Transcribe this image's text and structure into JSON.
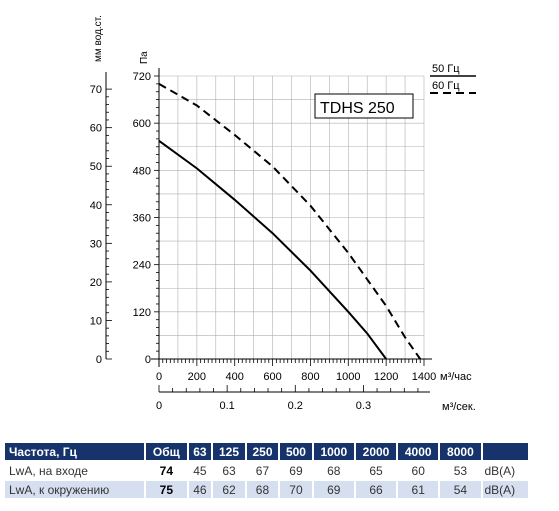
{
  "chart_data": {
    "type": "line",
    "title": "",
    "model_label": "TDHS 250",
    "pressure_axis": {
      "label": "Па",
      "min": 0,
      "max": 720,
      "ticks": [
        0,
        120,
        240,
        360,
        480,
        600,
        720
      ]
    },
    "mmwc_axis": {
      "label": "мм вод.ст.",
      "min": 0,
      "max": 73.4,
      "ticks": [
        0,
        10,
        20,
        30,
        40,
        50,
        60,
        70
      ]
    },
    "flow_axis": {
      "unit": "м³/час",
      "min": 0,
      "max": 1400,
      "ticks": [
        0,
        200,
        400,
        600,
        800,
        1000,
        1200,
        1400
      ]
    },
    "flow_sec_axis": {
      "unit": "м³/сек.",
      "ticks": [
        0,
        0.1,
        0.2,
        0.3
      ]
    },
    "grid": true,
    "legend_position": "top-right",
    "series": [
      {
        "name": "50 Гц",
        "style": "solid",
        "x": [
          0,
          200,
          400,
          600,
          800,
          1000,
          1100,
          1200
        ],
        "y": [
          555,
          485,
          405,
          320,
          225,
          120,
          65,
          0
        ]
      },
      {
        "name": "60 Гц",
        "style": "dashed",
        "x": [
          0,
          200,
          400,
          600,
          800,
          1000,
          1200,
          1300,
          1380
        ],
        "y": [
          700,
          645,
          570,
          490,
          390,
          270,
          135,
          55,
          0
        ]
      }
    ]
  },
  "noise_table": {
    "header": [
      "Частота, Гц",
      "Общ",
      "63",
      "125",
      "250",
      "500",
      "1000",
      "2000",
      "4000",
      "8000",
      ""
    ],
    "rows": [
      {
        "label": "LwA, на входе",
        "total": "74",
        "values": [
          "45",
          "63",
          "67",
          "69",
          "68",
          "65",
          "60",
          "53"
        ],
        "unit": "dB(A)"
      },
      {
        "label": "LwA, к окружению",
        "total": "75",
        "values": [
          "46",
          "62",
          "68",
          "70",
          "69",
          "66",
          "61",
          "54"
        ],
        "unit": "dB(A)"
      }
    ]
  },
  "colors": {
    "table_header": "#16346b",
    "row_highlight": "#d6dff0",
    "curve": "#000000",
    "grid": "#b0b0b0"
  }
}
